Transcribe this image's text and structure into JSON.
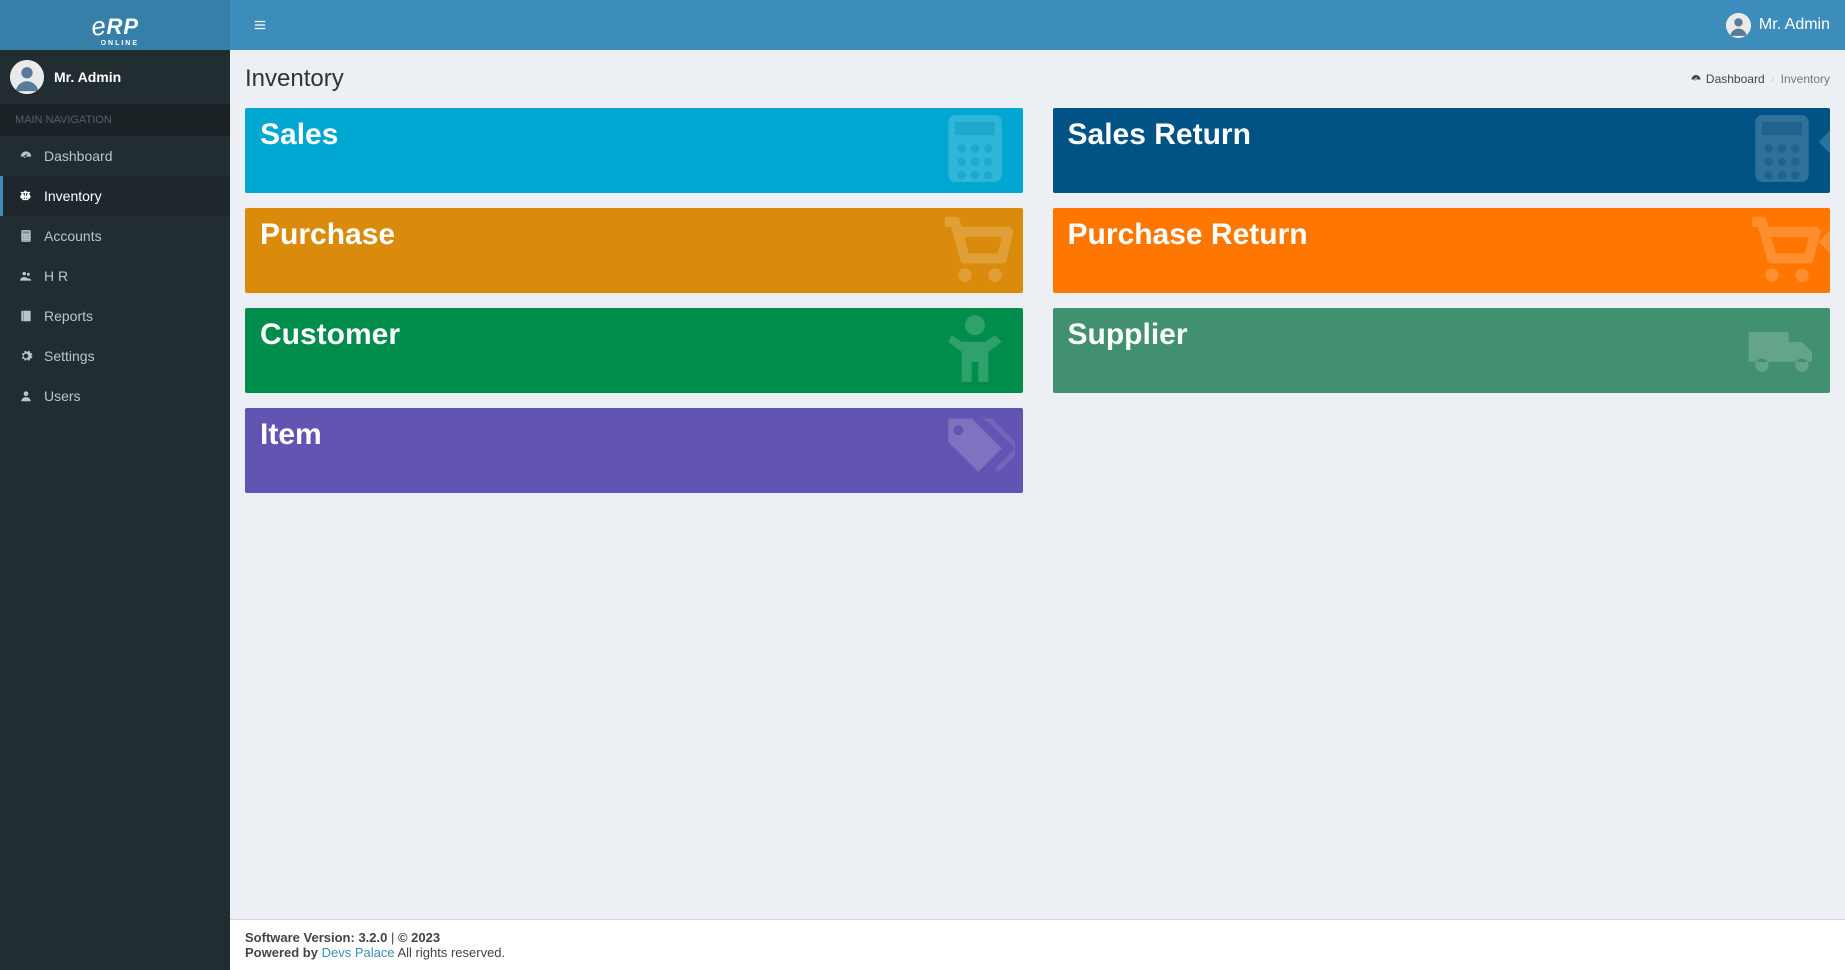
{
  "app": {
    "logo_main": "eRP",
    "logo_sub": "ONLINE",
    "user_name": "Mr. Admin"
  },
  "sidebar": {
    "user_name": "Mr. Admin",
    "header": "MAIN NAVIGATION",
    "items": [
      {
        "label": "Dashboard",
        "icon": "dashboard",
        "active": false
      },
      {
        "label": "Inventory",
        "icon": "balance",
        "active": true
      },
      {
        "label": "Accounts",
        "icon": "calculator",
        "active": false
      },
      {
        "label": "H R",
        "icon": "users",
        "active": false
      },
      {
        "label": "Reports",
        "icon": "book",
        "active": false
      },
      {
        "label": "Settings",
        "icon": "gear",
        "active": false
      },
      {
        "label": "Users",
        "icon": "user",
        "active": false
      }
    ]
  },
  "page": {
    "title": "Inventory",
    "breadcrumb": {
      "root": "Dashboard",
      "current": "Inventory"
    }
  },
  "tiles": [
    {
      "label": "Sales",
      "color": "#00a7d0",
      "icon": "calculator"
    },
    {
      "label": "Sales Return",
      "color": "#005384",
      "icon": "calculator",
      "return": true
    },
    {
      "label": "Purchase",
      "color": "#db8b0b",
      "icon": "cart"
    },
    {
      "label": "Purchase Return",
      "color": "#ff7701",
      "icon": "cart",
      "return": true
    },
    {
      "label": "Customer",
      "color": "#008d4c",
      "icon": "person"
    },
    {
      "label": "Supplier",
      "color": "#419070",
      "icon": "truck"
    },
    {
      "label": "Item",
      "color": "#6254b2",
      "icon": "tags"
    }
  ],
  "footer": {
    "version_label": "Software Version:",
    "version": "3.2.0",
    "copyright": "© 2023",
    "powered_label": "Powered by",
    "powered_link": "Devs Palace",
    "rights": "All rights reserved."
  },
  "colors": {
    "header": "#3c8dbc",
    "sidebar": "#222d32",
    "content_bg": "#ecf0f5"
  }
}
